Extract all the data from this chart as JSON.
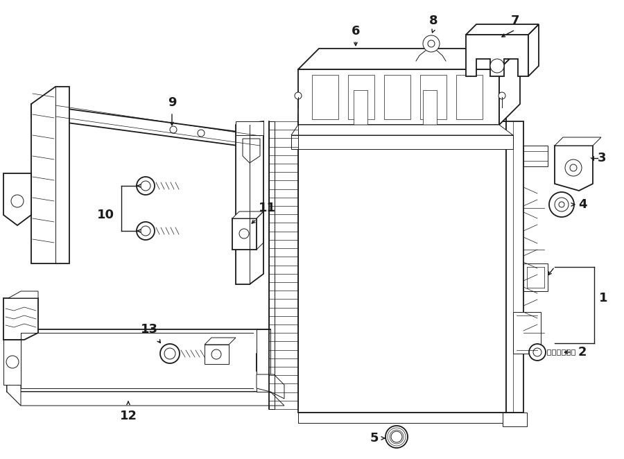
{
  "background_color": "#ffffff",
  "line_color": "#1a1a1a",
  "lw_main": 1.3,
  "lw_thin": 0.7,
  "lw_detail": 0.5,
  "label_fontsize": 13,
  "fig_w": 9.0,
  "fig_h": 6.62,
  "dpi": 100,
  "xlim": [
    0,
    900
  ],
  "ylim": [
    0,
    662
  ]
}
